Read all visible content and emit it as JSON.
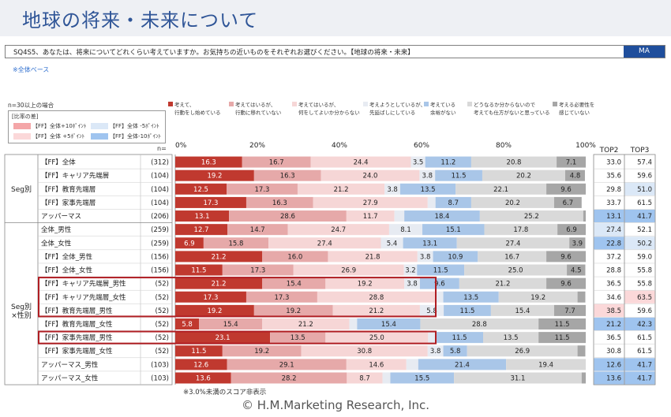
{
  "page": {
    "title": "地球の将来・未来について",
    "question": "SQ4S5、あなたは、将来についてどれくらい考えていますか。お気持ちの近いものをそれぞれお選びください。【地球の将来・未来】",
    "ma_label": "MA",
    "base_note": "※全体ベース",
    "sample_note": "n=30以上の場合",
    "n_label": "n=",
    "footnote": "※3.0%未満のスコア非表示",
    "copyright": "© H.M.Marketing Research, Inc."
  },
  "diff_legend": {
    "title": "[比率の差]",
    "items": [
      {
        "label": "【FF】全体+10ﾎﾟｲﾝﾄ",
        "color": "#f4a6a8"
      },
      {
        "label": "【FF】全体 -5ﾎﾟｲﾝﾄ",
        "color": "#dbe8f7"
      },
      {
        "label": "【FF】全体 +5ﾎﾟｲﾝﾄ",
        "color": "#fbd8d9"
      },
      {
        "label": "【FF】全体-10ﾎﾟｲﾝﾄ",
        "color": "#9fc4ef"
      }
    ]
  },
  "chart_data": {
    "type": "bar",
    "orientation": "horizontal",
    "stacked": true,
    "xlim": [
      0,
      100
    ],
    "x_ticks": [
      "0%",
      "20%",
      "40%",
      "60%",
      "80%",
      "100%"
    ],
    "series": [
      {
        "name": "考えて、\n行動をし始めている",
        "color": "#c0392f"
      },
      {
        "name": "考えてはいるが、\n行動に移れていない",
        "color": "#e6a9a9"
      },
      {
        "name": "考えてはいるが、\n何をしてよいか分からない",
        "color": "#f6d6d6"
      },
      {
        "name": "考えようとしているが、\n先延ばしにしている",
        "color": "#e7ebf2"
      },
      {
        "name": "考えている\n余裕がない",
        "color": "#a9c6e8"
      },
      {
        "name": "どうなるか分からないので\n考えても仕方がないと思っている",
        "color": "#d9d9d9"
      },
      {
        "name": "考える必要性を\n感じていない",
        "color": "#a6a6a6"
      }
    ],
    "top_columns": [
      "TOP2",
      "TOP3"
    ],
    "groups": [
      {
        "label": "Seg別",
        "rows": [
          0,
          4
        ]
      },
      {
        "label": "Seg別\n×性別",
        "rows": [
          5,
          17
        ]
      }
    ],
    "rows": [
      {
        "label": "【FF】全体",
        "n": "(312)",
        "values": [
          16.3,
          16.7,
          24.4,
          3.5,
          11.2,
          20.8,
          7.1
        ],
        "top2": "33.0",
        "top3": "57.4",
        "top2_bg": "",
        "top3_bg": ""
      },
      {
        "label": "【FF】キャリア先端層",
        "n": "(104)",
        "values": [
          19.2,
          16.3,
          24.0,
          3.8,
          11.5,
          20.2,
          4.8
        ],
        "top2": "35.6",
        "top3": "59.6",
        "top2_bg": "",
        "top3_bg": ""
      },
      {
        "label": "【FF】教育先端層",
        "n": "(104)",
        "values": [
          12.5,
          17.3,
          21.2,
          3.8,
          13.5,
          22.1,
          9.6
        ],
        "top2": "29.8",
        "top3": "51.0",
        "top2_bg": "",
        "top3_bg": "#dbe8f7"
      },
      {
        "label": "【FF】家事先端層",
        "n": "(104)",
        "values": [
          17.3,
          16.3,
          27.9,
          1.9,
          8.7,
          20.2,
          6.7
        ],
        "top2": "33.7",
        "top3": "61.5",
        "top2_bg": "",
        "top3_bg": ""
      },
      {
        "label": "アッパーマス",
        "n": "(206)",
        "values": [
          13.1,
          28.6,
          11.7,
          2.4,
          18.4,
          25.2,
          0.6
        ],
        "top2": "13.1",
        "top3": "41.7",
        "top2_bg": "#9fc4ef",
        "top3_bg": "#9fc4ef"
      },
      {
        "label": "全体_男性",
        "n": "(259)",
        "values": [
          12.7,
          14.7,
          24.7,
          8.1,
          15.1,
          17.8,
          6.9
        ],
        "top2": "27.4",
        "top3": "52.1",
        "top2_bg": "#dbe8f7",
        "top3_bg": ""
      },
      {
        "label": "全体_女性",
        "n": "(259)",
        "values": [
          6.9,
          15.8,
          27.4,
          5.4,
          13.1,
          27.4,
          3.9
        ],
        "top2": "22.8",
        "top3": "50.2",
        "top2_bg": "#9fc4ef",
        "top3_bg": "#dbe8f7"
      },
      {
        "label": "【FF】全体_男性",
        "n": "(156)",
        "values": [
          21.2,
          16.0,
          21.8,
          3.8,
          10.9,
          16.7,
          9.6
        ],
        "top2": "37.2",
        "top3": "59.0",
        "top2_bg": "",
        "top3_bg": ""
      },
      {
        "label": "【FF】全体_女性",
        "n": "(156)",
        "values": [
          11.5,
          17.3,
          26.9,
          3.2,
          11.5,
          25.0,
          4.5
        ],
        "top2": "28.8",
        "top3": "55.8",
        "top2_bg": "",
        "top3_bg": ""
      },
      {
        "label": "【FF】キャリア先端層_男性",
        "n": "(52)",
        "values": [
          21.2,
          15.4,
          19.2,
          3.8,
          9.6,
          21.2,
          9.6
        ],
        "top2": "36.5",
        "top3": "55.8",
        "top2_bg": "",
        "top3_bg": ""
      },
      {
        "label": "【FF】キャリア先端層_女性",
        "n": "(52)",
        "values": [
          17.3,
          17.3,
          28.8,
          1.9,
          13.5,
          19.2,
          1.9
        ],
        "top2": "34.6",
        "top3": "63.5",
        "top2_bg": "",
        "top3_bg": "#fbd8d9"
      },
      {
        "label": "【FF】教育先端層_男性",
        "n": "(52)",
        "values": [
          19.2,
          19.2,
          21.2,
          5.8,
          11.5,
          15.4,
          7.7
        ],
        "top2": "38.5",
        "top3": "59.6",
        "top2_bg": "#fbd8d9",
        "top3_bg": ""
      },
      {
        "label": "【FF】教育先端層_女性",
        "n": "(52)",
        "values": [
          5.8,
          15.4,
          21.2,
          1.9,
          15.4,
          28.8,
          11.5
        ],
        "top2": "21.2",
        "top3": "42.3",
        "top2_bg": "#9fc4ef",
        "top3_bg": "#9fc4ef"
      },
      {
        "label": "【FF】家事先端層_男性",
        "n": "(52)",
        "values": [
          23.1,
          13.5,
          25.0,
          1.9,
          11.5,
          13.5,
          11.5
        ],
        "top2": "36.5",
        "top3": "61.5",
        "top2_bg": "",
        "top3_bg": ""
      },
      {
        "label": "【FF】家事先端層_女性",
        "n": "(52)",
        "values": [
          11.5,
          19.2,
          30.8,
          3.8,
          5.8,
          26.9,
          1.9
        ],
        "top2": "30.8",
        "top3": "61.5",
        "top2_bg": "",
        "top3_bg": ""
      },
      {
        "label": "アッパーマス_男性",
        "n": "(103)",
        "values": [
          12.6,
          29.1,
          14.6,
          2.9,
          21.4,
          19.4,
          0.0
        ],
        "top2": "12.6",
        "top3": "41.7",
        "top2_bg": "#9fc4ef",
        "top3_bg": "#9fc4ef"
      },
      {
        "label": "アッパーマス_女性",
        "n": "(103)",
        "values": [
          13.6,
          28.2,
          8.7,
          1.9,
          15.5,
          31.1,
          1.0
        ],
        "top2": "13.6",
        "top3": "41.7",
        "top2_bg": "#9fc4ef",
        "top3_bg": "#9fc4ef"
      }
    ],
    "highlighted_rows": [
      [
        9,
        11
      ],
      [
        13,
        13
      ]
    ]
  }
}
